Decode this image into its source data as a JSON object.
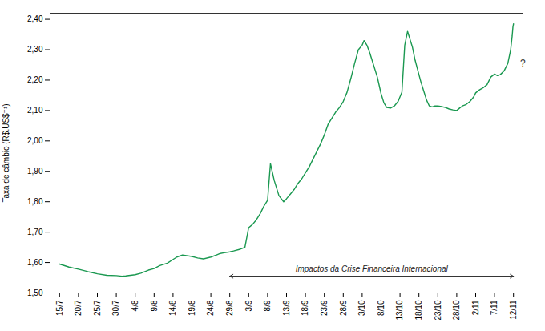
{
  "chart_data": {
    "type": "line",
    "ylabel": "Taxa de câmbio (R$.US$⁻¹)",
    "color": "#1a9850",
    "grid": false,
    "xlim": [
      -0.5,
      24.5
    ],
    "xticks": [
      {
        "value": 0,
        "label": "15/7"
      },
      {
        "value": 1,
        "label": "20/7"
      },
      {
        "value": 2,
        "label": "25/7"
      },
      {
        "value": 3,
        "label": "30/7"
      },
      {
        "value": 4,
        "label": "4/8"
      },
      {
        "value": 5,
        "label": "9/8"
      },
      {
        "value": 6,
        "label": "14/8"
      },
      {
        "value": 7,
        "label": "19/8"
      },
      {
        "value": 8,
        "label": "24/8"
      },
      {
        "value": 9,
        "label": "29/8"
      },
      {
        "value": 10,
        "label": "3/9"
      },
      {
        "value": 11,
        "label": "8/9"
      },
      {
        "value": 12,
        "label": "13/9"
      },
      {
        "value": 13,
        "label": "18/9"
      },
      {
        "value": 14,
        "label": "23/9"
      },
      {
        "value": 15,
        "label": "28/9"
      },
      {
        "value": 16,
        "label": "3/10"
      },
      {
        "value": 17,
        "label": "8/10"
      },
      {
        "value": 18,
        "label": "13/10"
      },
      {
        "value": 19,
        "label": "18/10"
      },
      {
        "value": 20,
        "label": "23/10"
      },
      {
        "value": 21,
        "label": "28/10"
      },
      {
        "value": 22,
        "label": "2/11"
      },
      {
        "value": 23,
        "label": "7/11"
      },
      {
        "value": 24,
        "label": "12/11"
      }
    ],
    "ylim": [
      1.5,
      2.42
    ],
    "yticks": [
      {
        "value": 1.5,
        "label": "1,50"
      },
      {
        "value": 1.6,
        "label": "1,60"
      },
      {
        "value": 1.7,
        "label": "1,70"
      },
      {
        "value": 1.8,
        "label": "1,80"
      },
      {
        "value": 1.9,
        "label": "1,90"
      },
      {
        "value": 2.0,
        "label": "2,00"
      },
      {
        "value": 2.1,
        "label": "2,10"
      },
      {
        "value": 2.2,
        "label": "2,20"
      },
      {
        "value": 2.3,
        "label": "2,30"
      },
      {
        "value": 2.4,
        "label": "2,40"
      }
    ],
    "x": [
      0,
      0.5,
      1,
      1.5,
      2,
      2.5,
      3,
      3.3,
      3.5,
      4,
      4.3,
      4.7,
      5,
      5.3,
      5.7,
      6,
      6.2,
      6.5,
      7,
      7.3,
      7.6,
      8,
      8.3,
      8.5,
      8.7,
      9,
      9.2,
      9.5,
      9.8,
      10,
      10.2,
      10.4,
      10.6,
      10.8,
      11,
      11.15,
      11.35,
      11.6,
      11.85,
      12,
      12.2,
      12.4,
      12.6,
      12.8,
      13,
      13.2,
      13.4,
      13.6,
      13.8,
      14,
      14.2,
      14.4,
      14.6,
      14.8,
      15,
      15.2,
      15.4,
      15.6,
      15.8,
      16,
      16.1,
      16.25,
      16.4,
      16.6,
      16.8,
      17,
      17.15,
      17.3,
      17.5,
      17.7,
      17.9,
      18.0,
      18.1,
      18.25,
      18.4,
      18.5,
      18.65,
      18.8,
      18.95,
      19.1,
      19.25,
      19.4,
      19.55,
      19.7,
      19.85,
      20.0,
      20.2,
      20.4,
      20.6,
      20.8,
      21.0,
      21.15,
      21.3,
      21.5,
      21.7,
      21.9,
      22.0,
      22.2,
      22.4,
      22.6,
      22.8,
      23.0,
      23.15,
      23.3,
      23.5,
      23.7,
      23.85,
      23.93,
      23.97,
      24.0
    ],
    "values": [
      1.595,
      1.585,
      1.578,
      1.57,
      1.563,
      1.558,
      1.557,
      1.555,
      1.556,
      1.56,
      1.565,
      1.575,
      1.58,
      1.59,
      1.598,
      1.61,
      1.618,
      1.625,
      1.62,
      1.615,
      1.612,
      1.618,
      1.625,
      1.63,
      1.632,
      1.635,
      1.638,
      1.643,
      1.65,
      1.715,
      1.725,
      1.74,
      1.76,
      1.785,
      1.805,
      1.925,
      1.87,
      1.82,
      1.8,
      1.81,
      1.825,
      1.84,
      1.86,
      1.875,
      1.895,
      1.915,
      1.94,
      1.965,
      1.99,
      2.02,
      2.055,
      2.075,
      2.095,
      2.11,
      2.13,
      2.16,
      2.205,
      2.255,
      2.3,
      2.315,
      2.33,
      2.315,
      2.29,
      2.25,
      2.21,
      2.155,
      2.125,
      2.11,
      2.108,
      2.115,
      2.13,
      2.145,
      2.16,
      2.315,
      2.36,
      2.34,
      2.31,
      2.265,
      2.23,
      2.195,
      2.165,
      2.135,
      2.115,
      2.112,
      2.115,
      2.115,
      2.113,
      2.11,
      2.105,
      2.102,
      2.1,
      2.108,
      2.115,
      2.12,
      2.13,
      2.145,
      2.158,
      2.168,
      2.175,
      2.185,
      2.21,
      2.22,
      2.215,
      2.218,
      2.23,
      2.255,
      2.3,
      2.345,
      2.375,
      2.385
    ],
    "arrow": {
      "x": [
        9.0,
        24.0
      ],
      "y": 1.555
    },
    "annotations": [
      {
        "text": "Impactos da Crise Financeira Internacional",
        "x": 16.5,
        "y": 1.57
      },
      {
        "text": "?",
        "x": 24.35,
        "y": 2.255
      }
    ]
  }
}
